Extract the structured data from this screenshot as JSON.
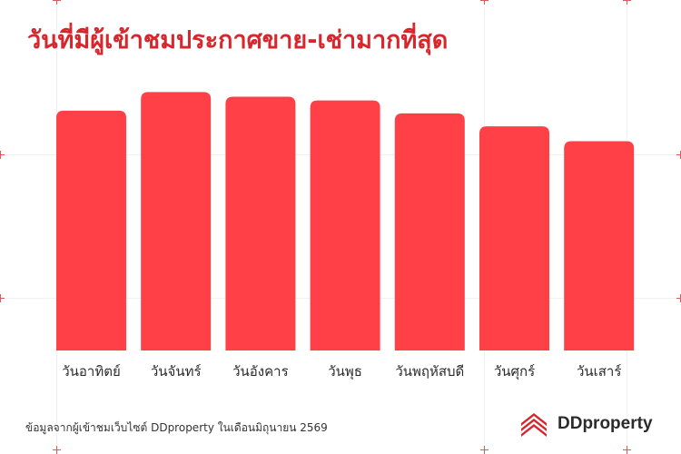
{
  "header": {
    "title": "วันที่มีผู้เข้าชมประกาศขาย-เช่ามากที่สุด"
  },
  "chart_data": {
    "type": "bar",
    "categories": [
      "วันอาทิตย์",
      "วันจันทร์",
      "วันอังคาร",
      "วันพุธ",
      "วันพฤหัสบดี",
      "วันศุกร์",
      "วันเสาร์"
    ],
    "values": [
      259,
      279,
      274,
      270,
      256,
      242,
      226
    ],
    "ylim": [
      0,
      300
    ],
    "grid": false,
    "bar_color": "#ff4047"
  },
  "footer": {
    "note": "ข้อมูลจากผู้เข้าชมเว็บไซต์ DDproperty ในเดือนมิถุนายน 2569",
    "brand": "DDproperty",
    "brand_color": "#d7262c"
  }
}
